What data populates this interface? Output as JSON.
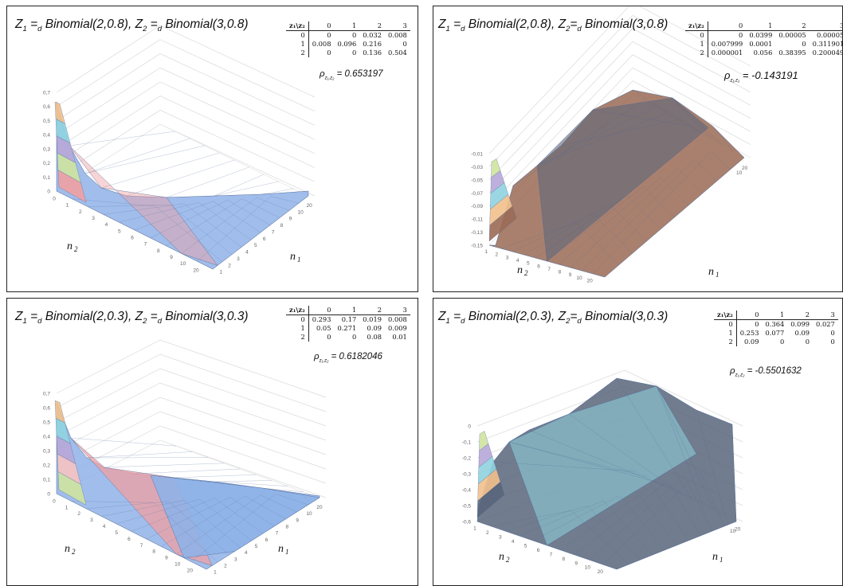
{
  "colors": {
    "band_blue": "#8fb2e8",
    "band_red": "#f0a0a2",
    "band_lightred": "#f6c3c2",
    "band_green": "#cfe3a0",
    "band_purple": "#b7a7d8",
    "band_cyan": "#8fd3df",
    "band_orange": "#f2c08c",
    "band_brown": "#9a6a55",
    "band_slate": "#58657a",
    "mesh": "#4f6a99"
  },
  "chart_data": [
    {
      "type": "surface",
      "title_parts": [
        "Z",
        "1",
        " =",
        "d",
        " Binomial(2,0.8), Z",
        "2",
        " =",
        "d",
        " Binomial(3,0.8)"
      ],
      "table": {
        "corner": "z₁\\z₂",
        "columns": [
          "0",
          "1",
          "2",
          "3"
        ],
        "rows": [
          {
            "label": "0",
            "values": [
              "0",
              "0",
              "0.032",
              "0.008"
            ]
          },
          {
            "label": "1",
            "values": [
              "0.008",
              "0.096",
              "0.216",
              "0"
            ]
          },
          {
            "label": "2",
            "values": [
              "0",
              "0",
              "0.136",
              "0.504"
            ]
          }
        ]
      },
      "rho_label": "ρ",
      "rho_sub": "z₁,z₂",
      "rho_value": " = 0.653197",
      "xlabel": "n",
      "xlabel_sub": "2",
      "ylabel": "n",
      "ylabel_sub": "1",
      "z_ticks": [
        "0,7",
        "0,6",
        "0,5",
        "0,4",
        "0,3",
        "0,2",
        "0,1",
        "0"
      ],
      "n2_ticks": [
        "0",
        "1",
        "2",
        "3",
        "4",
        "5",
        "6",
        "7",
        "8",
        "9",
        "10",
        "20"
      ],
      "n1_ticks": [
        "1",
        "2",
        "3",
        "4",
        "5",
        "6",
        "7",
        "8",
        "9",
        "10",
        "20"
      ],
      "z_range": [
        0,
        0.7
      ]
    },
    {
      "type": "surface",
      "title_parts": [
        "Z",
        "1",
        " =",
        "d",
        " Binomial(2,0.8), Z",
        "2",
        "=",
        "d",
        " Binomial(3,0.8)"
      ],
      "table": {
        "corner": "z₁\\z₂",
        "columns": [
          "0",
          "1",
          "2",
          "3"
        ],
        "rows": [
          {
            "label": "0",
            "values": [
              "0",
              "0.0399",
              "0.00005",
              "0.00005"
            ]
          },
          {
            "label": "1",
            "values": [
              "0.007999",
              "0.0001",
              "0",
              "0.311901"
            ]
          },
          {
            "label": "2",
            "values": [
              "0.000001",
              "0.056",
              "0.38395",
              "0.200049"
            ]
          }
        ]
      },
      "rho_label": "ρ",
      "rho_sub": "z₁,z₂",
      "rho_value": " = -0.143191",
      "xlabel": "n",
      "xlabel_sub": "2",
      "ylabel": "n",
      "ylabel_sub": "1",
      "z_ticks": [
        "-0,01",
        "-0,03",
        "-0,05",
        "-0,07",
        "-0,09",
        "-0,11",
        "-0,13",
        "-0,15"
      ],
      "n2_ticks": [
        "1",
        "2",
        "3",
        "4",
        "5",
        "6",
        "7",
        "8",
        "9",
        "10",
        "20"
      ],
      "n1_ticks": [
        "10",
        "20"
      ],
      "z_range": [
        -0.15,
        -0.01
      ]
    },
    {
      "type": "surface",
      "title_parts": [
        "Z",
        "1",
        " =",
        "d",
        " Binomial(2,0.3), Z",
        "2",
        " =",
        "d",
        " Binomial(3,0.3)"
      ],
      "table": {
        "corner": "z₁\\z₂",
        "columns": [
          "0",
          "1",
          "2",
          "3"
        ],
        "rows": [
          {
            "label": "0",
            "values": [
              "0.293",
              "0.17",
              "0.019",
              "0.008"
            ]
          },
          {
            "label": "1",
            "values": [
              "0.05",
              "0.271",
              "0.09",
              "0.009"
            ]
          },
          {
            "label": "2",
            "values": [
              "0",
              "0",
              "0.08",
              "0.01"
            ]
          }
        ]
      },
      "rho_label": "ρ",
      "rho_sub": "z₁,z₂",
      "rho_value": " = 0.6182046",
      "xlabel": "n",
      "xlabel_sub": "2",
      "ylabel": "n",
      "ylabel_sub": "1",
      "z_ticks": [
        "0,7",
        "0,6",
        "0,5",
        "0,4",
        "0,3",
        "0,2",
        "0,1",
        "0"
      ],
      "n2_ticks": [
        "0",
        "1",
        "2",
        "3",
        "4",
        "5",
        "6",
        "7",
        "8",
        "9",
        "10",
        "20"
      ],
      "n1_ticks": [
        "1",
        "2",
        "3",
        "4",
        "5",
        "6",
        "7",
        "8",
        "9",
        "10",
        "20"
      ],
      "z_range": [
        0,
        0.7
      ]
    },
    {
      "type": "surface",
      "title_parts": [
        "Z",
        "1",
        " =",
        "d",
        " Binomial(2,0.3), Z",
        "2",
        "=",
        "d",
        " Binomial(3,0.3)"
      ],
      "table": {
        "corner": "z₁\\z₂",
        "columns": [
          "0",
          "1",
          "2",
          "3"
        ],
        "rows": [
          {
            "label": "0",
            "values": [
              "0",
              "0.364",
              "0.099",
              "0.027"
            ]
          },
          {
            "label": "1",
            "values": [
              "0.253",
              "0.077",
              "0.09",
              "0"
            ]
          },
          {
            "label": "2",
            "values": [
              "0.09",
              "0",
              "0",
              "0"
            ]
          }
        ]
      },
      "rho_label": "ρ",
      "rho_sub": "z₁,z₂",
      "rho_value": " = -0.5501632",
      "xlabel": "n",
      "xlabel_sub": "2",
      "ylabel": "n",
      "ylabel_sub": "1",
      "z_ticks": [
        "0",
        "-0,1",
        "-0,2",
        "-0,3",
        "-0,4",
        "-0,5",
        "-0,6"
      ],
      "n2_ticks": [
        "1",
        "2",
        "3",
        "4",
        "5",
        "6",
        "7",
        "8",
        "9",
        "10",
        "20"
      ],
      "n1_ticks": [
        "10",
        "20"
      ],
      "z_range": [
        -0.6,
        0
      ]
    }
  ]
}
